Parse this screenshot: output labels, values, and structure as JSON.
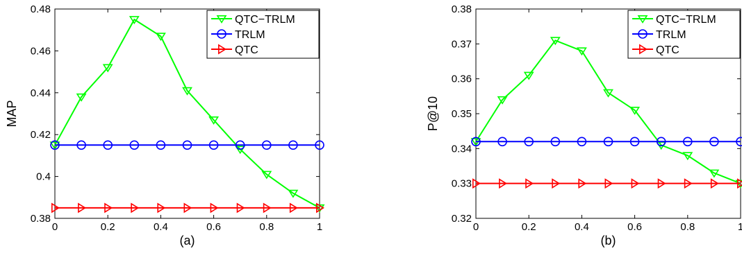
{
  "chart_data": [
    {
      "type": "line",
      "caption": "(a)",
      "ylabel": "MAP",
      "xlabel": "",
      "xlim": [
        0,
        1
      ],
      "ylim": [
        0.38,
        0.48
      ],
      "xticks": [
        0,
        0.2,
        0.4,
        0.6,
        0.8,
        1
      ],
      "xtick_labels": [
        "0",
        "0.2",
        "0.4",
        "0.6",
        "0.8",
        "1"
      ],
      "yticks": [
        0.38,
        0.4,
        0.42,
        0.44,
        0.46,
        0.48
      ],
      "ytick_labels": [
        "0.38",
        "0.4",
        "0.42",
        "0.44",
        "0.46",
        "0.48"
      ],
      "grid": false,
      "legend_position": "top-right",
      "x": [
        0,
        0.1,
        0.2,
        0.3,
        0.4,
        0.5,
        0.6,
        0.7,
        0.8,
        0.9,
        1.0
      ],
      "series": [
        {
          "name": "QTC−TRLM",
          "color": "#00ff00",
          "marker": "triangle-down",
          "values": [
            0.415,
            0.438,
            0.452,
            0.475,
            0.467,
            0.441,
            0.427,
            0.413,
            0.401,
            0.392,
            0.385
          ]
        },
        {
          "name": "TRLM",
          "color": "#0000ff",
          "marker": "circle",
          "values": [
            0.415,
            0.415,
            0.415,
            0.415,
            0.415,
            0.415,
            0.415,
            0.415,
            0.415,
            0.415,
            0.415
          ]
        },
        {
          "name": "QTC",
          "color": "#ff0000",
          "marker": "triangle-right",
          "values": [
            0.385,
            0.385,
            0.385,
            0.385,
            0.385,
            0.385,
            0.385,
            0.385,
            0.385,
            0.385,
            0.385
          ]
        }
      ]
    },
    {
      "type": "line",
      "caption": "(b)",
      "ylabel": "P@10",
      "xlabel": "",
      "xlim": [
        0,
        1
      ],
      "ylim": [
        0.32,
        0.38
      ],
      "xticks": [
        0,
        0.2,
        0.4,
        0.6,
        0.8,
        1
      ],
      "xtick_labels": [
        "0",
        "0.2",
        "0.4",
        "0.6",
        "0.8",
        "1"
      ],
      "yticks": [
        0.32,
        0.33,
        0.34,
        0.35,
        0.36,
        0.37,
        0.38
      ],
      "ytick_labels": [
        "0.32",
        "0.33",
        "0.34",
        "0.35",
        "0.36",
        "0.37",
        "0.38"
      ],
      "grid": false,
      "legend_position": "top-right",
      "x": [
        0,
        0.1,
        0.2,
        0.3,
        0.4,
        0.5,
        0.6,
        0.7,
        0.8,
        0.9,
        1.0
      ],
      "series": [
        {
          "name": "QTC−TRLM",
          "color": "#00ff00",
          "marker": "triangle-down",
          "values": [
            0.342,
            0.354,
            0.361,
            0.371,
            0.368,
            0.356,
            0.351,
            0.341,
            0.338,
            0.333,
            0.33
          ]
        },
        {
          "name": "TRLM",
          "color": "#0000ff",
          "marker": "circle",
          "values": [
            0.342,
            0.342,
            0.342,
            0.342,
            0.342,
            0.342,
            0.342,
            0.342,
            0.342,
            0.342,
            0.342
          ]
        },
        {
          "name": "QTC",
          "color": "#ff0000",
          "marker": "triangle-right",
          "values": [
            0.33,
            0.33,
            0.33,
            0.33,
            0.33,
            0.33,
            0.33,
            0.33,
            0.33,
            0.33,
            0.33
          ]
        }
      ]
    }
  ]
}
